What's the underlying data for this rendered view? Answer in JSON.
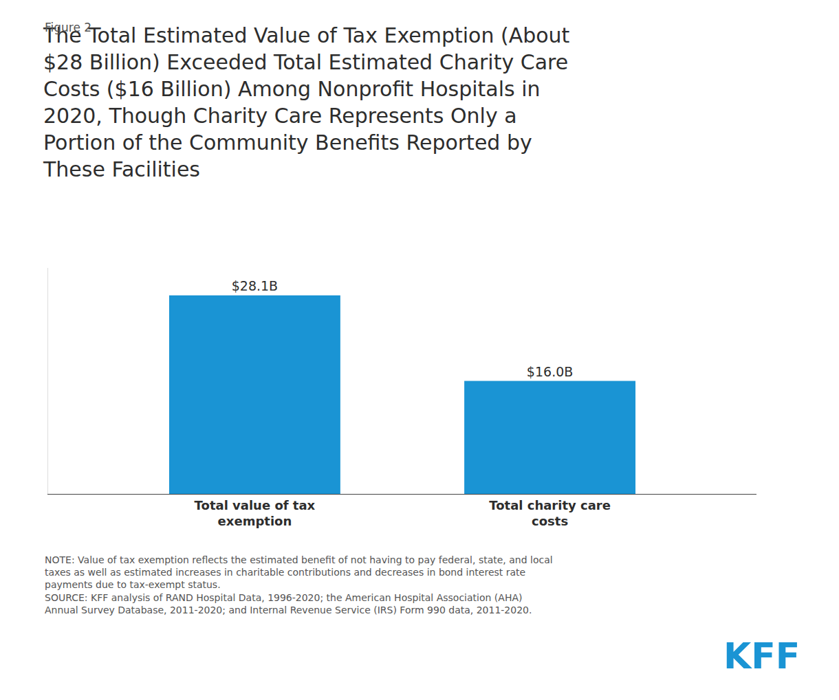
{
  "chart_data": {
    "type": "bar",
    "title": "The Total Estimated Value of Tax Exemption (About\n$28 Billion) Exceeded Total Estimated Charity Care\nCosts ($16 Billion) Among Nonprofit Hospitals in\n2020, Though Charity Care Represents Only a\nPortion of the Community Benefits Reported by\nThese Facilities",
    "categories": [
      "Total value of tax\nexemption",
      "Total charity care\ncosts"
    ],
    "values": [
      28.1,
      16.0
    ],
    "value_labels": [
      "$28.1B",
      "$16.0B"
    ],
    "data_labels": true,
    "color": "#1a94d4",
    "ylim": [
      0,
      32
    ],
    "tick_labels": "x",
    "grid": false,
    "annotations": [
      "Figure 2",
      "NOTE: Value of tax exemption reflects the estimated benefit of not having to pay federal, state, and local\ntaxes as well as estimated increases in charitable contributions and decreases in bond interest rate\npayments due to tax-exempt status.\nSOURCE: KFF analysis of RAND Hospital Data, 1996-2020; the American Hospital Association (AHA)\nAnnual Survey Database, 2011-2020; and Internal Revenue Service (IRS) Form 990 data, 2011-2020.",
      "KFF"
    ]
  }
}
